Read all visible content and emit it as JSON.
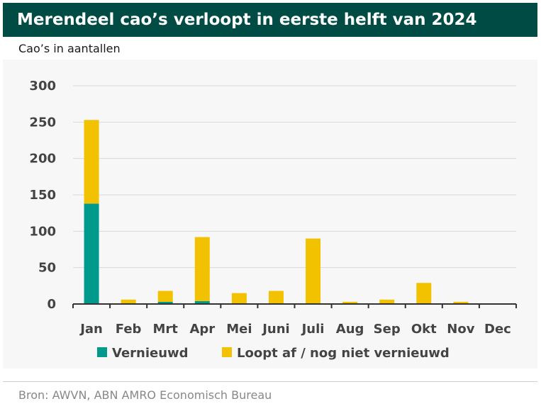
{
  "title": "Merendeel cao’s verloopt in eerste helft van 2024",
  "subtitle": "Cao’s in aantallen",
  "source": "Bron: AWVN, ABN AMRO Economisch Bureau",
  "colors": {
    "header": "#004c45",
    "vernieuwd": "#009a8c",
    "loopt_af": "#f2c200"
  },
  "chart_data": {
    "type": "bar",
    "stacked": true,
    "categories": [
      "Jan",
      "Feb",
      "Mrt",
      "Apr",
      "Mei",
      "Juni",
      "Juli",
      "Aug",
      "Sep",
      "Okt",
      "Nov",
      "Dec"
    ],
    "series": [
      {
        "name": "Vernieuwd",
        "values": [
          138,
          0,
          3,
          4,
          0,
          0,
          0,
          0,
          0,
          0,
          0,
          0
        ]
      },
      {
        "name": "Loopt af / nog niet vernieuwd",
        "values": [
          115,
          6,
          15,
          88,
          15,
          18,
          90,
          3,
          6,
          29,
          3,
          0
        ]
      }
    ],
    "ylim": [
      0,
      300
    ],
    "yticks": [
      0,
      50,
      100,
      150,
      200,
      250,
      300
    ],
    "grid": true,
    "legend_position": "bottom"
  }
}
